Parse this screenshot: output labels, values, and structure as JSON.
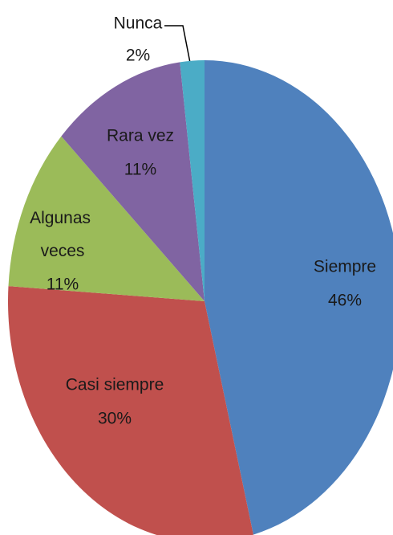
{
  "chart_data": {
    "type": "pie",
    "categories": [
      "Siempre",
      "Casi siempre",
      "Algunas veces",
      "Rara vez",
      "Nunca"
    ],
    "values": [
      46,
      30,
      11,
      11,
      2
    ],
    "value_labels": [
      "46%",
      "30%",
      "11%",
      "11%",
      "2%"
    ],
    "colors": [
      "#4f81bd",
      "#c0504d",
      "#9bbb59",
      "#8064a2",
      "#4bacc6"
    ]
  }
}
